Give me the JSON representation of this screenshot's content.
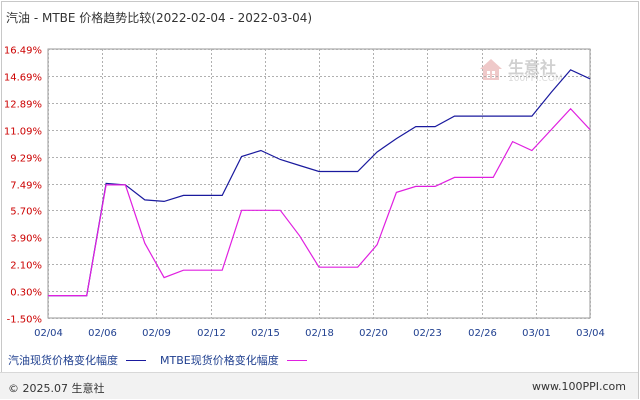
{
  "title": "汽油 - MTBE 价格趋势比较(2022-02-04 - 2022-03-04)",
  "footer": {
    "copyright": "© 2025.07 生意社",
    "url": "www.100PPI.com"
  },
  "watermark": {
    "brand": "生意社",
    "site": "100PPI.COM",
    "icon": "house-logo-icon"
  },
  "colors": {
    "series1": "#1a1a9e",
    "series2": "#e020e0",
    "grid": "#b0b0b0",
    "ytick": "#cc0000",
    "xtick": "#1f3f8f"
  },
  "chart_data": {
    "type": "line",
    "title": "汽油 - MTBE 价格趋势比较(2022-02-04 - 2022-03-04)",
    "ylim": [
      -1.5,
      16.49
    ],
    "yticks": [
      "16.49%",
      "14.69%",
      "12.89%",
      "11.09%",
      "9.29%",
      "7.49%",
      "5.70%",
      "3.90%",
      "2.10%",
      "0.30%",
      "-1.50%"
    ],
    "ytick_values": [
      16.49,
      14.69,
      12.89,
      11.09,
      9.29,
      7.49,
      5.7,
      3.9,
      2.1,
      0.3,
      -1.5
    ],
    "xticks": [
      "02/04",
      "02/06",
      "02/09",
      "02/12",
      "02/15",
      "02/18",
      "02/20",
      "02/23",
      "02/26",
      "03/01",
      "03/04"
    ],
    "xlim": [
      0,
      28
    ],
    "grid": true,
    "legend_position": "bottom-left",
    "series": [
      {
        "name": "汽油现货价格变化幅度",
        "points": [
          [
            0,
            0
          ],
          [
            1,
            0
          ],
          [
            2,
            0
          ],
          [
            3,
            7.5
          ],
          [
            4,
            7.4
          ],
          [
            5,
            6.4
          ],
          [
            6,
            6.3
          ],
          [
            7,
            6.7
          ],
          [
            8,
            6.7
          ],
          [
            9,
            6.7
          ],
          [
            10,
            9.3
          ],
          [
            11,
            9.7
          ],
          [
            12,
            9.1
          ],
          [
            13,
            8.7
          ],
          [
            14,
            8.3
          ],
          [
            15,
            8.3
          ],
          [
            16,
            8.3
          ],
          [
            17,
            9.6
          ],
          [
            18,
            10.5
          ],
          [
            19,
            11.3
          ],
          [
            20,
            11.3
          ],
          [
            21,
            12.0
          ],
          [
            22,
            12.0
          ],
          [
            23,
            12.0
          ],
          [
            24,
            12.0
          ],
          [
            25,
            12.0
          ],
          [
            26,
            13.6
          ],
          [
            27,
            15.1
          ],
          [
            28,
            14.5
          ]
        ]
      },
      {
        "name": "MTBE现货价格变化幅度",
        "points": [
          [
            0,
            0
          ],
          [
            1,
            0
          ],
          [
            2,
            0
          ],
          [
            3,
            7.4
          ],
          [
            4,
            7.4
          ],
          [
            5,
            3.5
          ],
          [
            6,
            1.2
          ],
          [
            7,
            1.7
          ],
          [
            8,
            1.7
          ],
          [
            9,
            1.7
          ],
          [
            10,
            5.7
          ],
          [
            11,
            5.7
          ],
          [
            12,
            5.7
          ],
          [
            13,
            4.0
          ],
          [
            14,
            1.9
          ],
          [
            15,
            1.9
          ],
          [
            16,
            1.9
          ],
          [
            17,
            3.4
          ],
          [
            18,
            6.9
          ],
          [
            19,
            7.3
          ],
          [
            20,
            7.3
          ],
          [
            21,
            7.9
          ],
          [
            22,
            7.9
          ],
          [
            23,
            7.9
          ],
          [
            24,
            10.3
          ],
          [
            25,
            9.7
          ],
          [
            26,
            11.1
          ],
          [
            27,
            12.5
          ],
          [
            28,
            11.1
          ]
        ]
      }
    ]
  }
}
